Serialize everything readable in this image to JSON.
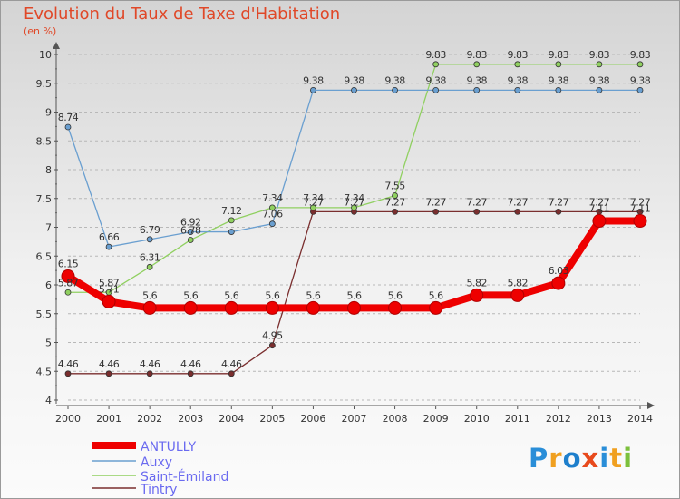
{
  "chart": {
    "title": "Evolution du Taux de Taxe d'Habitation",
    "unit": "(en %)"
  },
  "logo": {
    "text": "Proxiti",
    "colors": [
      "#2a8ed8",
      "#f0a020",
      "#1e7fcc",
      "#e84a1c",
      "#2a8ed8",
      "#f0a020",
      "#7cc03c"
    ]
  },
  "chart_data": {
    "type": "line",
    "title": "Evolution du Taux de Taxe d'Habitation",
    "ylabel": "(en %)",
    "xlabel": "",
    "x": [
      "2000",
      "2001",
      "2002",
      "2003",
      "2004",
      "2005",
      "2006",
      "2007",
      "2008",
      "2009",
      "2010",
      "2011",
      "2012",
      "2013",
      "2014"
    ],
    "ylim": [
      4,
      10
    ],
    "yticks": [
      "4",
      "4.5",
      "5",
      "5.5",
      "6",
      "6.5",
      "7",
      "7.5",
      "8",
      "8.5",
      "9",
      "9.5",
      "10"
    ],
    "grid": "dashed-horizontal",
    "legend_position": "bottom-left",
    "series": [
      {
        "name": "ANTULLY",
        "color": "#ee0000",
        "values": [
          6.15,
          5.71,
          5.6,
          5.6,
          5.6,
          5.6,
          5.6,
          5.6,
          5.6,
          5.6,
          5.82,
          5.82,
          6.03,
          7.11,
          7.11
        ],
        "labels": [
          "6.15",
          "5.71",
          "5.6",
          "5.6",
          "5.6",
          "5.6",
          "5.6",
          "5.6",
          "5.6",
          "5.6",
          "5.82",
          "5.82",
          "6.03",
          "7.11",
          "7.11"
        ]
      },
      {
        "name": "Auxy",
        "color": "#6a9fd0",
        "values": [
          8.74,
          6.66,
          6.79,
          6.92,
          6.92,
          7.06,
          9.38,
          9.38,
          9.38,
          9.38,
          9.38,
          9.38,
          9.38,
          9.38,
          9.38
        ],
        "labels": [
          "8.74",
          "6.66",
          "6.79",
          "6.92",
          "",
          "7.06",
          "9.38",
          "9.38",
          "9.38",
          "9.38",
          "9.38",
          "9.38",
          "9.38",
          "9.38",
          "9.38"
        ]
      },
      {
        "name": "Saint-Émiland",
        "color": "#90d060",
        "values": [
          5.87,
          5.87,
          6.31,
          6.78,
          7.12,
          7.34,
          7.34,
          7.34,
          7.55,
          9.83,
          9.83,
          9.83,
          9.83,
          9.83,
          9.83
        ],
        "labels": [
          "5.87",
          "5.87",
          "6.31",
          "6.78",
          "7.12",
          "7.34",
          "7.34",
          "7.34",
          "7.55",
          "9.83",
          "9.83",
          "9.83",
          "9.83",
          "9.83",
          "9.83"
        ]
      },
      {
        "name": "Tintry",
        "color": "#7a2e2e",
        "values": [
          4.46,
          4.46,
          4.46,
          4.46,
          4.46,
          4.95,
          7.27,
          7.27,
          7.27,
          7.27,
          7.27,
          7.27,
          7.27,
          7.27,
          7.27
        ],
        "labels": [
          "4.46",
          "4.46",
          "4.46",
          "4.46",
          "4.46",
          "4.95",
          "7.27",
          "7.27",
          "7.27",
          "7.27",
          "7.27",
          "7.27",
          "7.27",
          "7.27",
          "7.27"
        ]
      }
    ]
  }
}
